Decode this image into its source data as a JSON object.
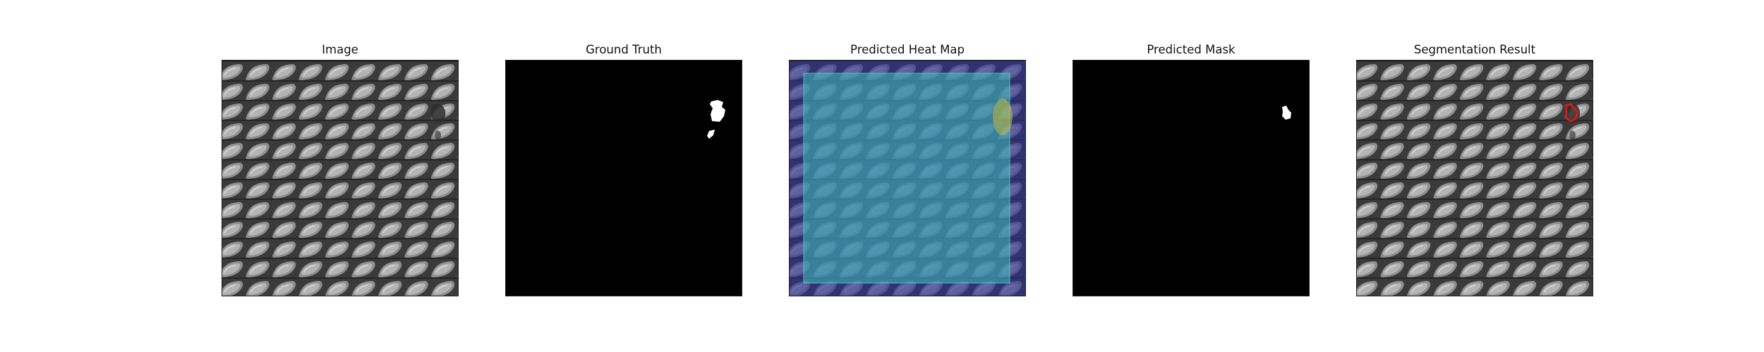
{
  "figure": {
    "panels": [
      {
        "title": "Image"
      },
      {
        "title": "Ground Truth"
      },
      {
        "title": "Predicted Heat Map"
      },
      {
        "title": "Predicted Mask"
      },
      {
        "title": "Segmentation Result"
      }
    ]
  },
  "colors": {
    "texture_base": "#5c5c5c",
    "texture_highlight": "#b8b8b8",
    "texture_groove": "#2c2c2c",
    "mask_background": "#000000",
    "mask_foreground": "#ffffff",
    "heatmap_low": "#3b3f9e",
    "heatmap_mid": "#45c8c0",
    "heatmap_high": "#c8b840",
    "segmentation_contour": "#d01c1c"
  }
}
